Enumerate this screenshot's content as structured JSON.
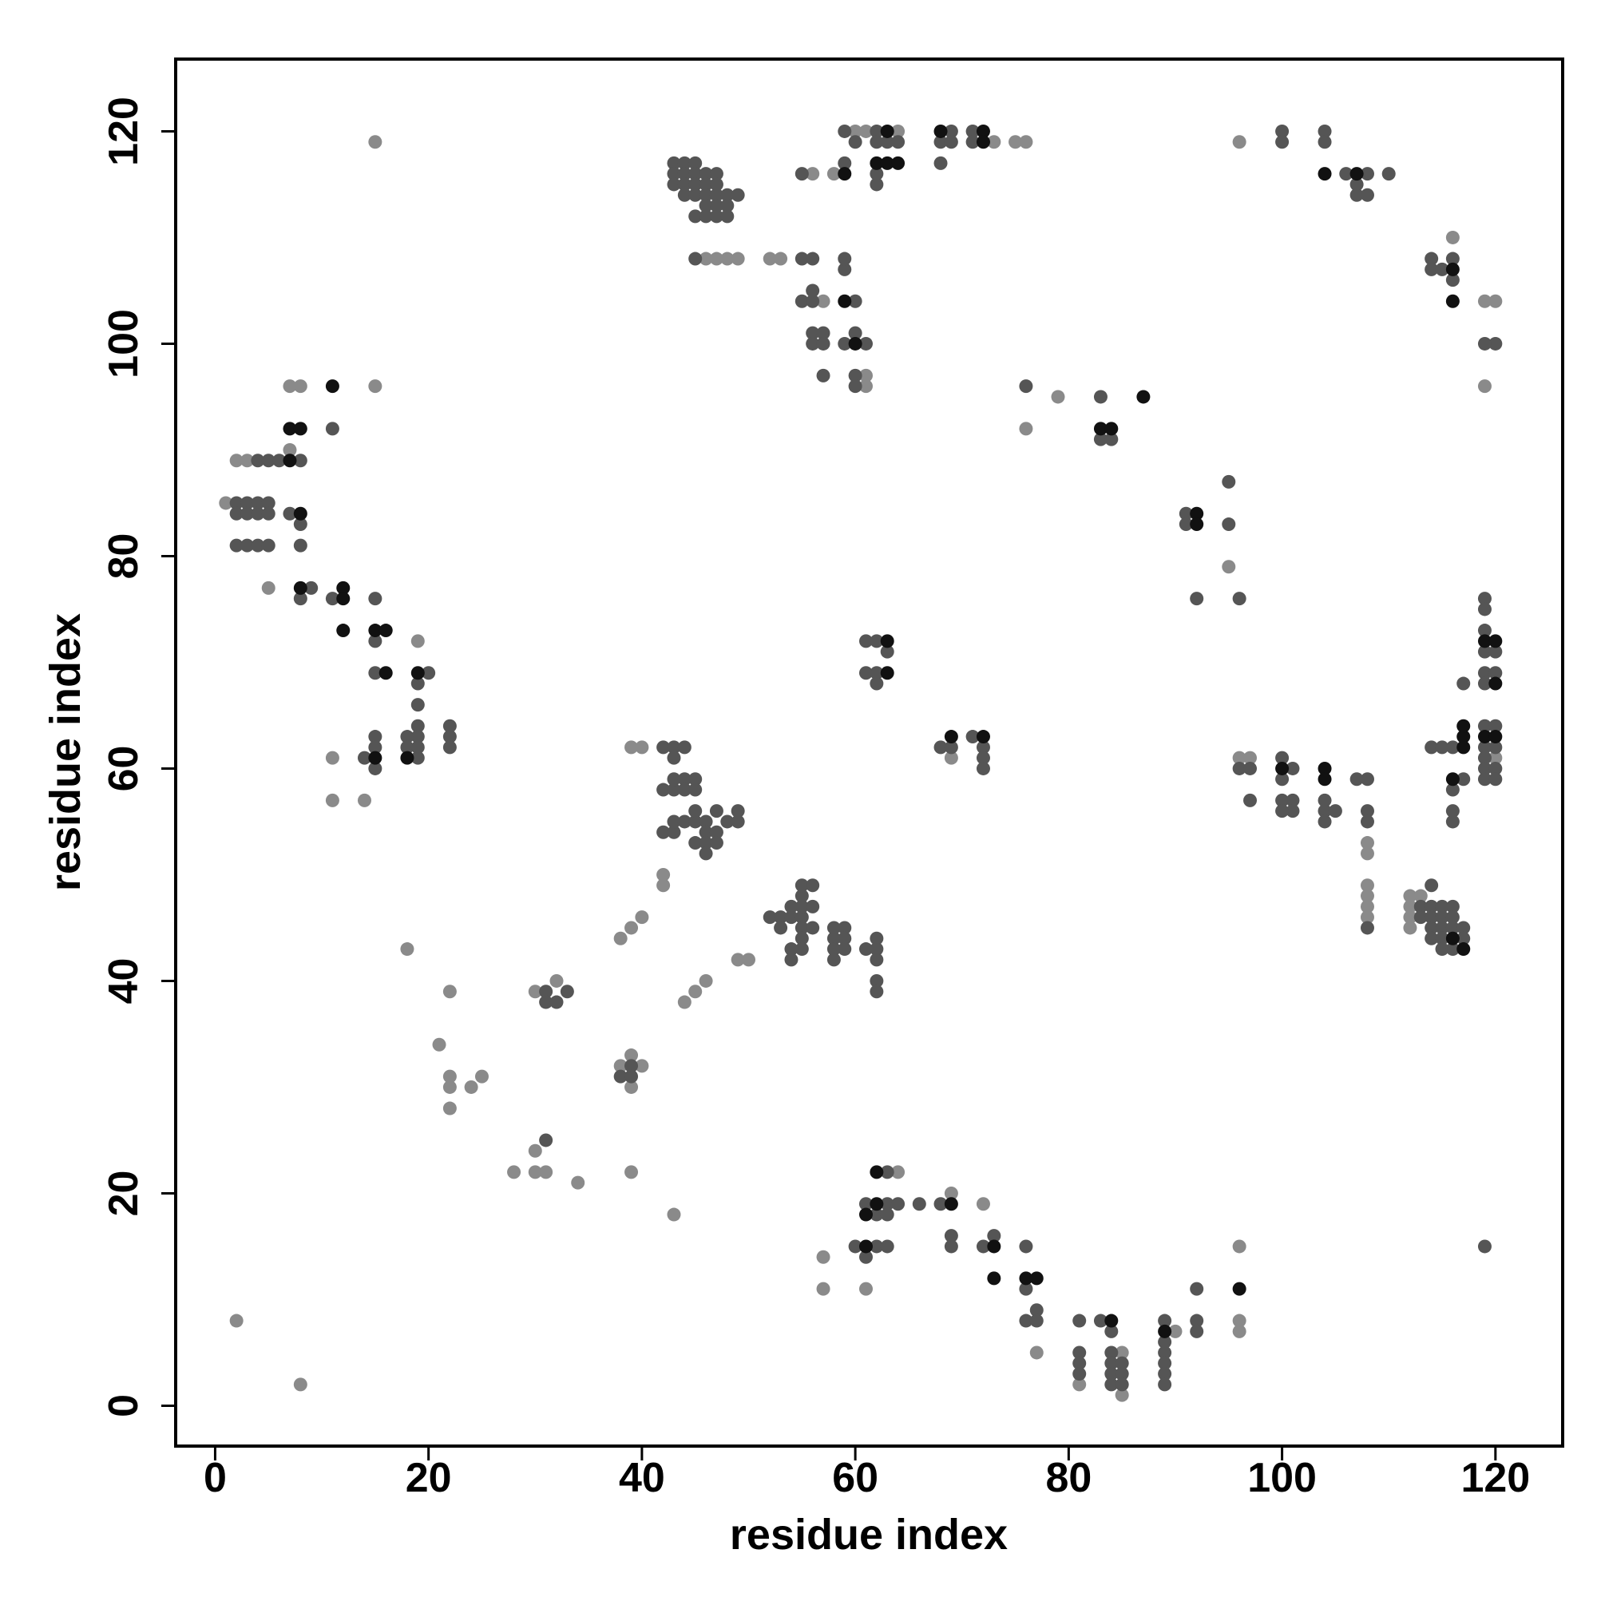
{
  "chart_data": {
    "type": "scatter",
    "x_label": "residue index",
    "y_label": "residue index",
    "xlim": [
      -3.7,
      126.3
    ],
    "ylim": [
      -3.8,
      126.8
    ],
    "xticks": [
      0,
      20,
      40,
      60,
      80,
      100,
      120
    ],
    "yticks": [
      0,
      20,
      40,
      60,
      80,
      100,
      120
    ],
    "series": [
      {
        "color": "#8a8a8a",
        "x": [
          1,
          2,
          3,
          7,
          8,
          7,
          5,
          15,
          15,
          18,
          2,
          8,
          19,
          11,
          11,
          14,
          22,
          21,
          22,
          22,
          22,
          24,
          25,
          28,
          30,
          31,
          30,
          34,
          30,
          32,
          38,
          39,
          40,
          39,
          39,
          43,
          38,
          39,
          40,
          44,
          45,
          46,
          49,
          50,
          42,
          42,
          39,
          40,
          46,
          47,
          48,
          49,
          52,
          53,
          56,
          58,
          60,
          61,
          64,
          73,
          75,
          76,
          57,
          61,
          61,
          79,
          76,
          95,
          69,
          96,
          97,
          96,
          108,
          108,
          108,
          108,
          108,
          108,
          112,
          113,
          112,
          112,
          112,
          116,
          119,
          120,
          119,
          120,
          57,
          57,
          61,
          64,
          69,
          72,
          77,
          85,
          85,
          96,
          96,
          96,
          90,
          81
        ],
        "values": [
          85,
          89,
          89,
          96,
          96,
          90,
          77,
          119,
          96,
          43,
          8,
          2,
          72,
          61,
          57,
          57,
          39,
          34,
          31,
          30,
          28,
          30,
          31,
          22,
          22,
          22,
          24,
          21,
          39,
          40,
          32,
          33,
          32,
          30,
          22,
          18,
          44,
          45,
          46,
          38,
          39,
          40,
          42,
          42,
          50,
          49,
          62,
          62,
          108,
          108,
          108,
          108,
          108,
          108,
          116,
          116,
          120,
          120,
          120,
          119,
          119,
          119,
          104,
          97,
          96,
          95,
          92,
          79,
          61,
          61,
          61,
          119,
          53,
          52,
          49,
          48,
          47,
          46,
          48,
          48,
          47,
          46,
          45,
          110,
          104,
          104,
          96,
          61,
          14,
          11,
          11,
          22,
          20,
          19,
          5,
          1,
          5,
          8,
          15,
          7,
          7,
          2
        ]
      },
      {
        "color": "#555555",
        "x": [
          2,
          3,
          4,
          5,
          2,
          3,
          4,
          5,
          2,
          3,
          4,
          5,
          4,
          5,
          6,
          8,
          11,
          7,
          8,
          8,
          9,
          8,
          11,
          15,
          15,
          15,
          20,
          19,
          19,
          19,
          19,
          18,
          18,
          19,
          19,
          22,
          22,
          22,
          15,
          15,
          14,
          15,
          31,
          31,
          32,
          33,
          38,
          39,
          39,
          31,
          42,
          43,
          44,
          43,
          42,
          43,
          43,
          44,
          45,
          44,
          45,
          42,
          43,
          43,
          44,
          45,
          45,
          46,
          46,
          47,
          47,
          48,
          49,
          49,
          45,
          46,
          47,
          46,
          52,
          53,
          53,
          54,
          54,
          55,
          55,
          56,
          55,
          56,
          55,
          55,
          54,
          54,
          55,
          55,
          56,
          58,
          59,
          58,
          59,
          58,
          59,
          58,
          61,
          62,
          62,
          62,
          62,
          62,
          43,
          44,
          45,
          43,
          44,
          45,
          46,
          47,
          43,
          44,
          45,
          46,
          47,
          44,
          45,
          46,
          47,
          48,
          49,
          45,
          46,
          47,
          48,
          46,
          47,
          48,
          45,
          55,
          56,
          55,
          59,
          59,
          62,
          60,
          62,
          63,
          64,
          62,
          62,
          69,
          71,
          68,
          69,
          71,
          68,
          55,
          56,
          56,
          60,
          56,
          57,
          56,
          57,
          59,
          60,
          61,
          57,
          60,
          60,
          59,
          59,
          61,
          62,
          61,
          62,
          62,
          63,
          100,
          100,
          104,
          104,
          106,
          108,
          110,
          107,
          107,
          108,
          114,
          114,
          115,
          116,
          116,
          120,
          119,
          76,
          83,
          83,
          84,
          91,
          91,
          95,
          95,
          92,
          96,
          68,
          69,
          71,
          72,
          72,
          72,
          96,
          97,
          97,
          100,
          101,
          100,
          100,
          101,
          101,
          100,
          104,
          104,
          104,
          105,
          107,
          108,
          108,
          108,
          108,
          114,
          113,
          114,
          115,
          116,
          113,
          114,
          115,
          116,
          114,
          115,
          116,
          117,
          114,
          115,
          117,
          115,
          116,
          114,
          115,
          116,
          117,
          116,
          116,
          116,
          117,
          119,
          119,
          119,
          119,
          120,
          119,
          120,
          119,
          119,
          120,
          119,
          120,
          119,
          119,
          120,
          119,
          120,
          119,
          60,
          61,
          62,
          63,
          63,
          62,
          63,
          63,
          61,
          64,
          66,
          68,
          69,
          69,
          72,
          73,
          76,
          76,
          77,
          76,
          77,
          81,
          83,
          81,
          81,
          81,
          84,
          84,
          84,
          84,
          85,
          85,
          85,
          84,
          89,
          89,
          89,
          89,
          89,
          89,
          92,
          92,
          92
        ],
        "values": [
          85,
          85,
          85,
          85,
          84,
          84,
          84,
          84,
          81,
          81,
          81,
          81,
          89,
          89,
          89,
          89,
          92,
          84,
          83,
          81,
          77,
          76,
          76,
          76,
          72,
          69,
          69,
          68,
          66,
          64,
          63,
          63,
          62,
          62,
          61,
          64,
          63,
          62,
          63,
          62,
          61,
          60,
          39,
          38,
          38,
          39,
          31,
          32,
          31,
          25,
          62,
          62,
          62,
          61,
          58,
          58,
          59,
          59,
          59,
          58,
          58,
          54,
          54,
          55,
          55,
          55,
          56,
          55,
          54,
          54,
          56,
          55,
          55,
          56,
          53,
          53,
          53,
          52,
          46,
          46,
          45,
          46,
          47,
          46,
          47,
          47,
          45,
          45,
          44,
          43,
          43,
          42,
          48,
          49,
          49,
          45,
          45,
          44,
          44,
          43,
          43,
          42,
          43,
          43,
          44,
          42,
          40,
          39,
          117,
          117,
          117,
          116,
          116,
          116,
          116,
          116,
          115,
          115,
          115,
          115,
          115,
          114,
          114,
          114,
          114,
          114,
          114,
          112,
          112,
          112,
          112,
          113,
          113,
          113,
          108,
          108,
          108,
          116,
          117,
          120,
          120,
          119,
          119,
          119,
          119,
          116,
          115,
          120,
          120,
          119,
          119,
          119,
          117,
          104,
          104,
          105,
          104,
          101,
          101,
          100,
          100,
          100,
          101,
          100,
          97,
          97,
          96,
          107,
          108,
          72,
          72,
          69,
          69,
          68,
          71,
          120,
          119,
          120,
          119,
          116,
          116,
          116,
          115,
          114,
          114,
          108,
          107,
          107,
          108,
          106,
          100,
          100,
          96,
          95,
          91,
          91,
          84,
          83,
          87,
          83,
          76,
          76,
          62,
          62,
          63,
          62,
          61,
          60,
          60,
          60,
          57,
          61,
          60,
          59,
          57,
          57,
          56,
          56,
          57,
          56,
          55,
          56,
          59,
          59,
          56,
          55,
          45,
          49,
          47,
          47,
          47,
          47,
          46,
          46,
          46,
          46,
          45,
          45,
          45,
          45,
          44,
          44,
          44,
          43,
          43,
          62,
          62,
          62,
          59,
          58,
          56,
          55,
          68,
          76,
          75,
          73,
          71,
          71,
          69,
          69,
          68,
          64,
          64,
          62,
          62,
          61,
          60,
          60,
          59,
          59,
          15,
          15,
          14,
          15,
          15,
          19,
          18,
          18,
          22,
          19,
          19,
          19,
          19,
          16,
          15,
          15,
          16,
          15,
          11,
          9,
          8,
          8,
          8,
          8,
          5,
          4,
          3,
          5,
          4,
          3,
          2,
          4,
          3,
          2,
          7,
          8,
          6,
          5,
          4,
          3,
          2,
          11,
          8,
          7
        ]
      },
      {
        "color": "#111111",
        "x": [
          7,
          7,
          8,
          11,
          8,
          8,
          12,
          12,
          12,
          15,
          16,
          16,
          19,
          18,
          15,
          63,
          63,
          62,
          63,
          64,
          63,
          68,
          72,
          72,
          59,
          59,
          60,
          104,
          107,
          116,
          116,
          83,
          84,
          87,
          92,
          92,
          69,
          72,
          100,
          104,
          104,
          117,
          117,
          117,
          116,
          119,
          120,
          120,
          119,
          120,
          116,
          117,
          62,
          62,
          61,
          61,
          69,
          73,
          73,
          76,
          77,
          84,
          89,
          96
        ],
        "values": [
          89,
          92,
          92,
          96,
          84,
          77,
          77,
          76,
          73,
          73,
          73,
          69,
          69,
          61,
          61,
          72,
          69,
          117,
          117,
          117,
          120,
          120,
          120,
          119,
          116,
          104,
          100,
          116,
          116,
          107,
          104,
          92,
          92,
          95,
          84,
          83,
          63,
          63,
          60,
          60,
          59,
          62,
          63,
          64,
          59,
          72,
          72,
          68,
          63,
          63,
          44,
          43,
          22,
          19,
          18,
          15,
          19,
          15,
          12,
          12,
          12,
          8,
          7,
          11
        ]
      }
    ]
  }
}
